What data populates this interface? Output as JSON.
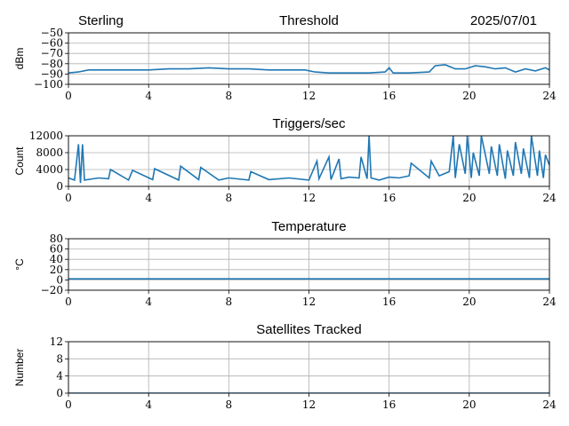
{
  "header": {
    "station": "Sterling",
    "date": "2025/07/01"
  },
  "style": {
    "line_color": "#1f77b4",
    "grid_color": "#b0b0b0",
    "axis_color": "#000000"
  },
  "chart_data": [
    {
      "type": "line",
      "title": "Threshold",
      "xlabel": "",
      "ylabel": "dBm",
      "xlim": [
        0,
        24
      ],
      "ylim": [
        -100,
        -50
      ],
      "xticks": [
        0,
        4,
        8,
        12,
        16,
        20,
        24
      ],
      "yticks": [
        -100,
        -90,
        -80,
        -70,
        -60,
        -50
      ],
      "ytick_labels": [
        "−100",
        "−90",
        "−80",
        "−70",
        "−60",
        "−50"
      ],
      "grid": true,
      "series": [
        {
          "x": [
            0,
            0.5,
            1,
            2,
            3,
            4,
            5,
            6,
            7,
            8,
            9,
            10,
            11,
            11.8,
            12.3,
            13,
            14,
            15,
            15.8,
            16,
            16.2,
            17,
            18,
            18.3,
            18.8,
            19.3,
            19.8,
            20.3,
            20.8,
            21.3,
            21.8,
            22.3,
            22.8,
            23.3,
            23.8,
            24
          ],
          "y": [
            -89,
            -88,
            -86,
            -86,
            -86,
            -86,
            -85,
            -85,
            -84,
            -85,
            -85,
            -86,
            -86,
            -86,
            -88,
            -89,
            -89,
            -89,
            -88,
            -84,
            -89,
            -89,
            -88,
            -82,
            -81,
            -85,
            -85,
            -82,
            -83,
            -85,
            -84,
            -88,
            -85,
            -87,
            -84,
            -86
          ]
        }
      ]
    },
    {
      "type": "line",
      "title": "Triggers/sec",
      "xlabel": "",
      "ylabel": "Count",
      "xlim": [
        0,
        24
      ],
      "ylim": [
        0,
        12000
      ],
      "xticks": [
        0,
        4,
        8,
        12,
        16,
        20,
        24
      ],
      "yticks": [
        0,
        4000,
        8000,
        12000
      ],
      "ytick_labels": [
        "0",
        "4000",
        "8000",
        "12000"
      ],
      "grid": true,
      "series": [
        {
          "x": [
            0,
            0.3,
            0.5,
            0.6,
            0.7,
            0.8,
            1.5,
            2,
            2.1,
            3,
            3.2,
            4.2,
            4.3,
            5.5,
            5.6,
            6.5,
            6.6,
            7.5,
            8,
            9,
            9.1,
            10,
            11,
            12,
            12.4,
            12.5,
            13,
            13.1,
            13.5,
            13.6,
            14,
            14.5,
            14.6,
            14.9,
            15,
            15.1,
            15.5,
            16,
            16.5,
            17,
            17.1,
            18,
            18.1,
            18.5,
            19,
            19.2,
            19.3,
            19.5,
            19.8,
            19.9,
            20.1,
            20.2,
            20.5,
            20.6,
            21,
            21.1,
            21.4,
            21.5,
            21.8,
            21.9,
            22.2,
            22.3,
            22.6,
            22.7,
            23,
            23.1,
            23.4,
            23.5,
            23.7,
            23.8,
            24
          ],
          "y": [
            2000,
            1500,
            10000,
            800,
            10000,
            1500,
            2000,
            1800,
            4000,
            1500,
            3800,
            1600,
            4200,
            1500,
            4800,
            1600,
            4500,
            1500,
            2000,
            1500,
            3500,
            1600,
            2000,
            1500,
            6000,
            1800,
            7000,
            1600,
            6500,
            1800,
            2200,
            2000,
            7000,
            1800,
            12000,
            2000,
            1500,
            2200,
            2000,
            2500,
            5500,
            2000,
            6000,
            2500,
            3500,
            12000,
            2000,
            10000,
            3000,
            12000,
            2000,
            8000,
            2500,
            12000,
            3000,
            9500,
            2500,
            10000,
            1800,
            8500,
            2500,
            10500,
            3000,
            9000,
            2000,
            12000,
            2500,
            8500,
            2000,
            7500,
            5000
          ]
        }
      ]
    },
    {
      "type": "line",
      "title": "Temperature",
      "xlabel": "",
      "ylabel": "°C",
      "xlim": [
        0,
        24
      ],
      "ylim": [
        -20,
        80
      ],
      "xticks": [
        0,
        4,
        8,
        12,
        16,
        20,
        24
      ],
      "yticks": [
        -20,
        0,
        20,
        40,
        60,
        80
      ],
      "ytick_labels": [
        "−20",
        "0",
        "20",
        "40",
        "60",
        "80"
      ],
      "grid": true,
      "series": [
        {
          "x": [
            0,
            24
          ],
          "y": [
            2,
            2
          ]
        }
      ]
    },
    {
      "type": "line",
      "title": "Satellites Tracked",
      "xlabel": "",
      "ylabel": "Number",
      "xlim": [
        0,
        24
      ],
      "ylim": [
        0,
        12
      ],
      "xticks": [
        0,
        4,
        8,
        12,
        16,
        20,
        24
      ],
      "yticks": [
        0,
        4,
        8,
        12
      ],
      "ytick_labels": [
        "0",
        "4",
        "8",
        "12"
      ],
      "grid": true,
      "series": [
        {
          "x": [
            0,
            24
          ],
          "y": [
            0,
            0
          ]
        }
      ]
    }
  ]
}
